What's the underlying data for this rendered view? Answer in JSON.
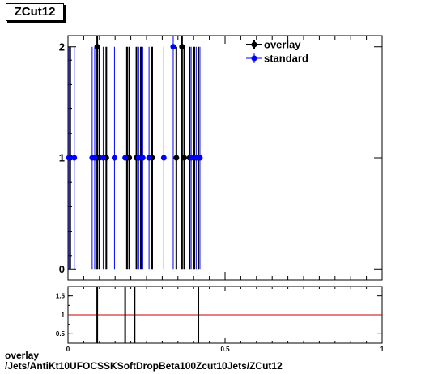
{
  "title": "ZCut12",
  "caption": {
    "line1": "overlay",
    "line2": "/Jets/AntiKt10UFOCSSKSoftDropBeta100Zcut10Jets/ZCut12"
  },
  "chart_data": [
    {
      "type": "scatter",
      "title": "ZCut12",
      "xlim": [
        0,
        1
      ],
      "ylim": [
        -0.1,
        2.1
      ],
      "y_ticks": [
        "0",
        "1",
        "2"
      ],
      "x_ticks": [],
      "legend": {
        "placement": "top-right",
        "entries": [
          "overlay",
          "standard"
        ]
      },
      "colors": {
        "overlay": "#000000",
        "standard": "#0000ff"
      },
      "series": [
        {
          "name": "overlay",
          "points": [
            {
              "x": 0.007,
              "y": 1,
              "err": 1
            },
            {
              "x": 0.093,
              "y": 2,
              "err": 2
            },
            {
              "x": 0.1,
              "y": 1,
              "err": 1
            },
            {
              "x": 0.122,
              "y": 1,
              "err": 1
            },
            {
              "x": 0.188,
              "y": 1,
              "err": 1
            },
            {
              "x": 0.195,
              "y": 1,
              "err": 1
            },
            {
              "x": 0.218,
              "y": 1,
              "err": 1
            },
            {
              "x": 0.232,
              "y": 1,
              "err": 1
            },
            {
              "x": 0.268,
              "y": 1,
              "err": 1
            },
            {
              "x": 0.345,
              "y": 1,
              "err": 1
            },
            {
              "x": 0.363,
              "y": 2,
              "err": 2
            },
            {
              "x": 0.37,
              "y": 1,
              "err": 1
            },
            {
              "x": 0.387,
              "y": 1,
              "err": 1
            },
            {
              "x": 0.402,
              "y": 1,
              "err": 1
            },
            {
              "x": 0.415,
              "y": 1,
              "err": 1
            }
          ]
        },
        {
          "name": "standard",
          "points": [
            {
              "x": 0.003,
              "y": 1,
              "err": 1
            },
            {
              "x": 0.02,
              "y": 1,
              "err": 1
            },
            {
              "x": 0.077,
              "y": 1,
              "err": 1
            },
            {
              "x": 0.085,
              "y": 1,
              "err": 1
            },
            {
              "x": 0.112,
              "y": 1,
              "err": 1
            },
            {
              "x": 0.148,
              "y": 1,
              "err": 1
            },
            {
              "x": 0.182,
              "y": 1,
              "err": 1
            },
            {
              "x": 0.225,
              "y": 1,
              "err": 1
            },
            {
              "x": 0.238,
              "y": 1,
              "err": 1
            },
            {
              "x": 0.258,
              "y": 1,
              "err": 1
            },
            {
              "x": 0.305,
              "y": 1,
              "err": 1
            },
            {
              "x": 0.335,
              "y": 2,
              "err": 2
            },
            {
              "x": 0.392,
              "y": 1,
              "err": 1
            },
            {
              "x": 0.408,
              "y": 1,
              "err": 1
            },
            {
              "x": 0.42,
              "y": 1,
              "err": 1
            }
          ]
        }
      ]
    },
    {
      "type": "scatter",
      "title": "",
      "xlim": [
        0,
        1
      ],
      "ylim": [
        0.25,
        1.75
      ],
      "y_ticks": [
        "0.5",
        "1",
        "1.5"
      ],
      "x_ticks": [
        "0",
        "0.5",
        "1"
      ],
      "reference_line": {
        "y": 1,
        "color": "#cc0000"
      },
      "series": [
        {
          "name": "",
          "points": [
            {
              "x": 0.093,
              "y": 1,
              "err": 1
            },
            {
              "x": 0.182,
              "y": 1,
              "err": 1
            },
            {
              "x": 0.212,
              "y": 1,
              "err": 1
            },
            {
              "x": 0.415,
              "y": 1,
              "err": 1
            }
          ]
        }
      ]
    }
  ]
}
